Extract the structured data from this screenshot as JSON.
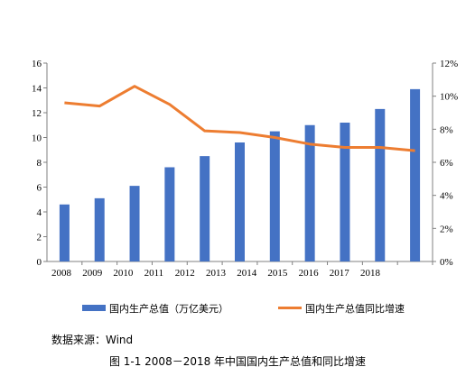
{
  "chart_data": {
    "type": "bar",
    "categories": [
      "2008",
      "2009",
      "2010",
      "2011",
      "2012",
      "2013",
      "2014",
      "2015",
      "2016",
      "2017",
      "2018"
    ],
    "x_tick_labels": [
      "2008",
      "2009",
      "2010",
      "2011",
      "2012",
      "2013",
      "2014",
      "2015",
      "2016",
      "2017",
      "2018"
    ],
    "series": [
      {
        "name": "国内生产总值（万亿美元）",
        "type": "bar",
        "axis": "left",
        "color": "#4472C4",
        "values": [
          4.6,
          5.1,
          6.1,
          7.6,
          8.5,
          9.6,
          10.5,
          11.0,
          11.2,
          12.3,
          13.9
        ]
      },
      {
        "name": "国内生产总值同比增速",
        "type": "line",
        "axis": "right",
        "color": "#ED7D31",
        "values": [
          9.6,
          9.4,
          10.6,
          9.5,
          7.9,
          7.8,
          7.5,
          7.1,
          6.9,
          6.9,
          6.7
        ]
      }
    ],
    "y_left": {
      "min": 0,
      "max": 16,
      "step": 2,
      "ticks": [
        "0",
        "2",
        "4",
        "6",
        "8",
        "10",
        "12",
        "14",
        "16"
      ]
    },
    "y_right": {
      "min": 0,
      "max": 12,
      "step": 2,
      "unit": "%",
      "ticks": [
        "0%",
        "2%",
        "4%",
        "6%",
        "8%",
        "10%",
        "12%"
      ]
    },
    "grid": false,
    "legend_position": "bottom"
  },
  "source_text": "数据来源：Wind",
  "caption": "图 1-1    2008－2018 年中国国内生产总值和同比增速"
}
